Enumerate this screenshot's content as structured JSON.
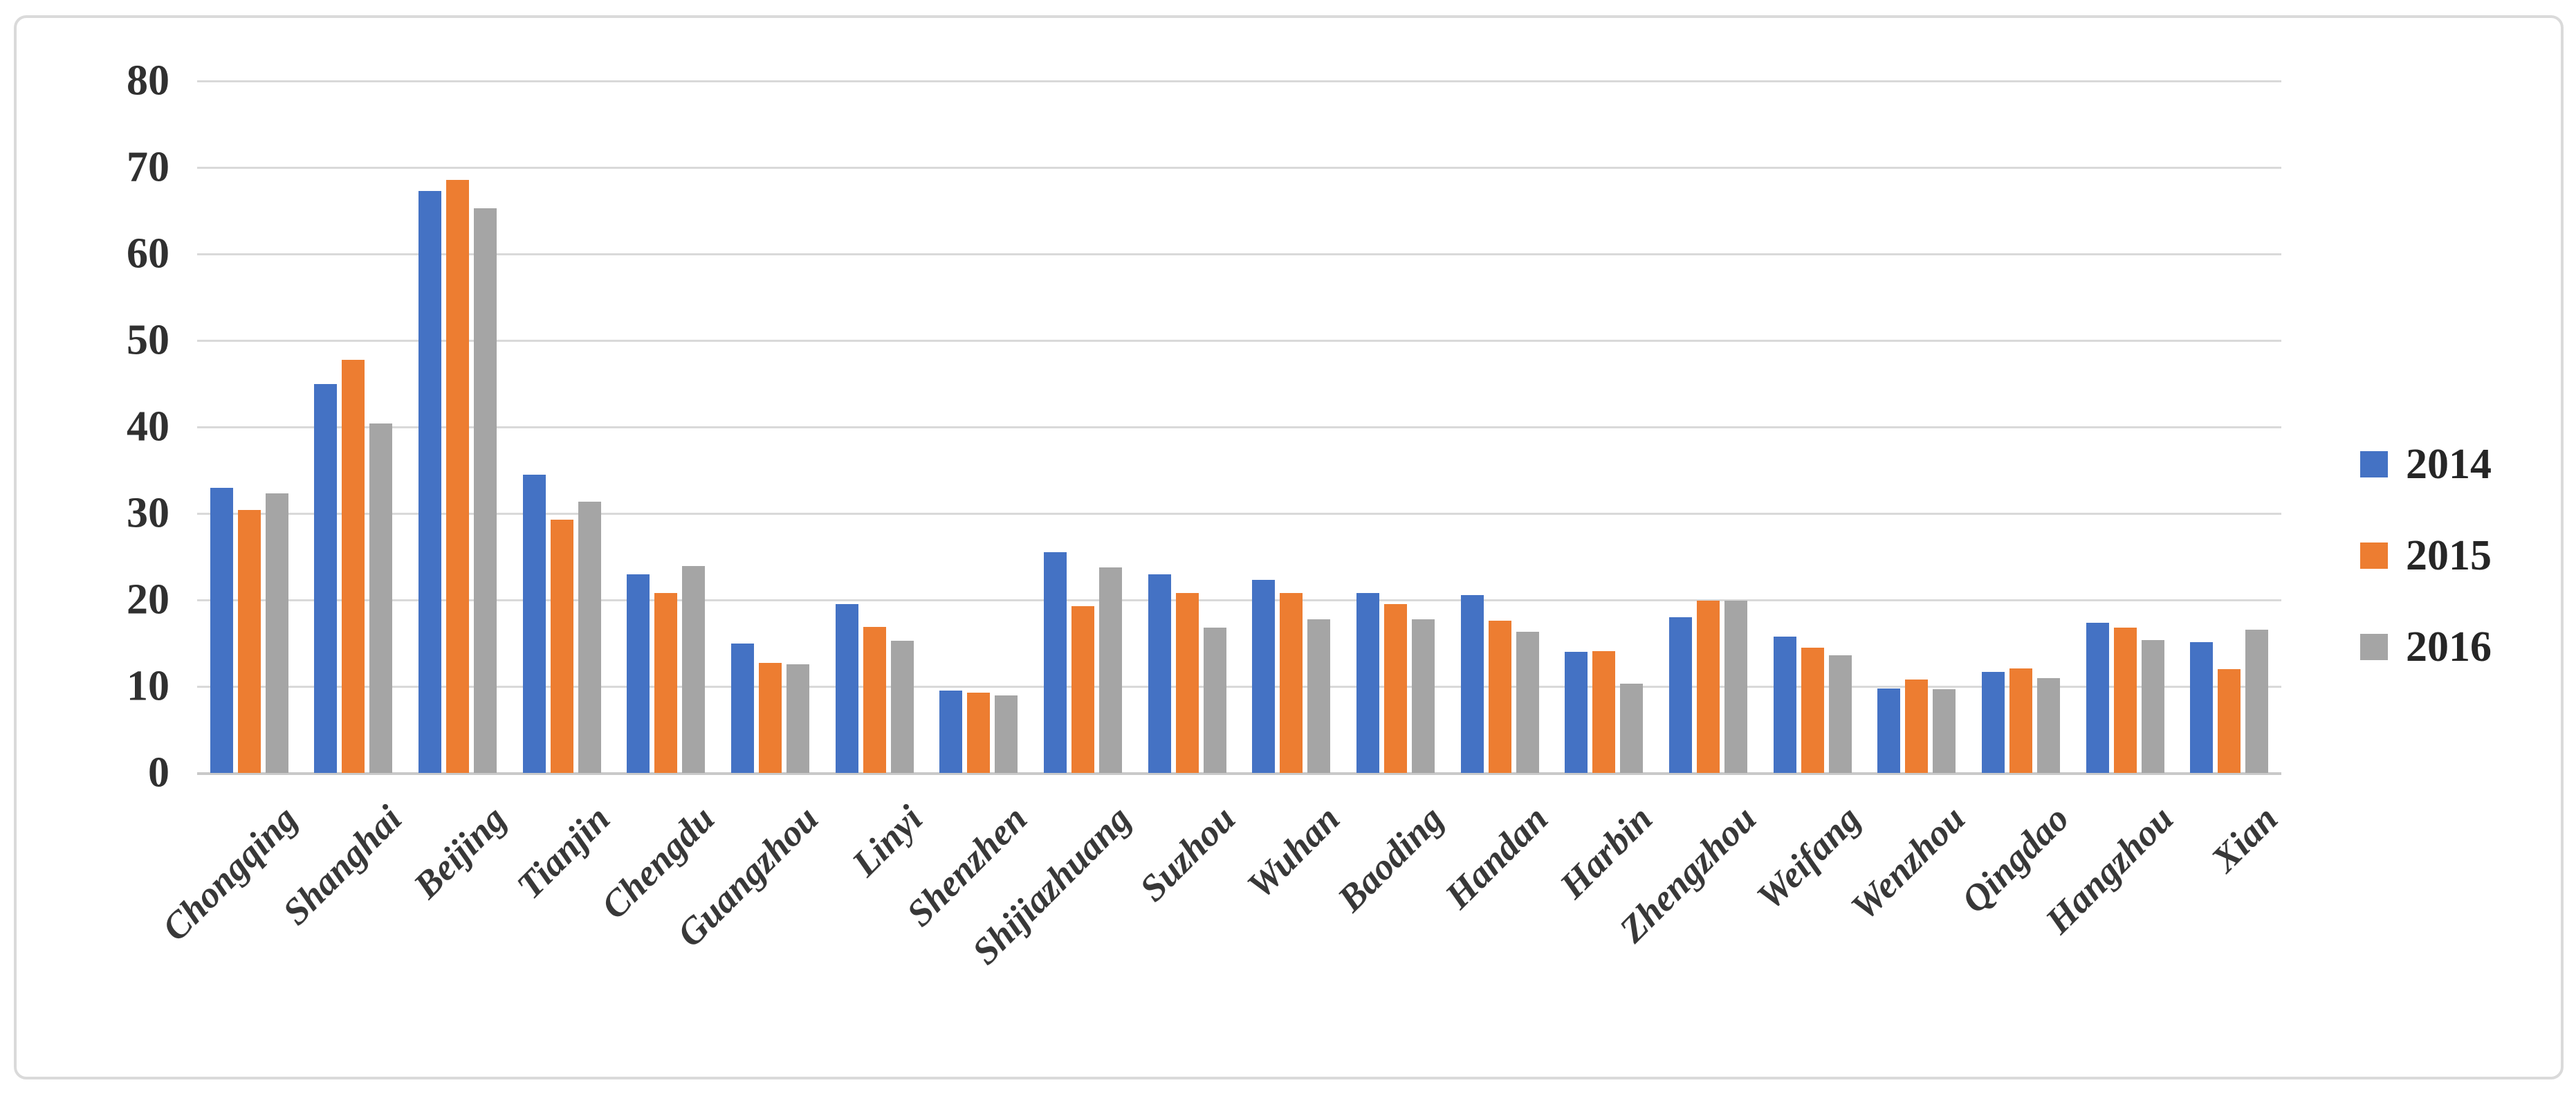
{
  "chart_data": {
    "type": "bar",
    "title": "",
    "xlabel": "",
    "ylabel": "",
    "categories": [
      "Chongqing",
      "Shanghai",
      "Beijing",
      "Tianjin",
      "Chengdu",
      "Guangzhou",
      "Linyi",
      "Shenzhen",
      "Shijiazhuang",
      "Suzhou",
      "Wuhan",
      "Baoding",
      "Handan",
      "Harbin",
      "Zhengzhou",
      "Weifang",
      "Wenzhou",
      "Qingdao",
      "Hangzhou",
      "Xian"
    ],
    "series": [
      {
        "name": "2014",
        "color": "#4472C4",
        "values": [
          33.0,
          45.0,
          67.3,
          34.5,
          23.0,
          15.0,
          19.5,
          9.5,
          25.5,
          23.0,
          22.3,
          20.8,
          20.6,
          14.0,
          18.0,
          15.8,
          9.8,
          11.7,
          17.4,
          15.1
        ]
      },
      {
        "name": "2015",
        "color": "#ED7D31",
        "values": [
          30.4,
          47.8,
          68.6,
          29.3,
          20.8,
          12.7,
          16.9,
          9.3,
          19.3,
          20.8,
          20.8,
          19.5,
          17.6,
          14.1,
          19.9,
          14.5,
          10.8,
          12.1,
          16.8,
          12.0
        ]
      },
      {
        "name": "2016",
        "color": "#A5A5A5",
        "values": [
          32.3,
          40.4,
          65.3,
          31.4,
          23.9,
          12.6,
          15.3,
          9.0,
          23.8,
          16.8,
          17.8,
          17.8,
          16.3,
          10.3,
          19.9,
          13.6,
          9.7,
          11.0,
          15.4,
          16.6
        ]
      }
    ],
    "ylim": [
      0,
      80
    ],
    "yticks": [
      0,
      10,
      20,
      30,
      40,
      50,
      60,
      70,
      80
    ],
    "grid": "horizontal",
    "gridline_color": "#d9d9d9",
    "legend_position": "right",
    "legend_entries": [
      "2014",
      "2015",
      "2016"
    ],
    "axis_text_color": "#303030",
    "frame_border_color": "#dadada",
    "background_color": "#ffffff"
  }
}
